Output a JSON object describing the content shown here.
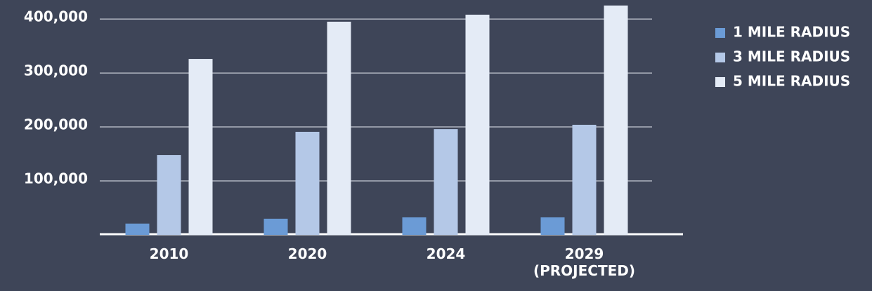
{
  "chart_data": {
    "type": "bar",
    "categories": [
      "2010",
      "2020",
      "2024",
      "2029\n(PROJECTED)"
    ],
    "series": [
      {
        "name": "1 MILE RADIUS",
        "color": "#6b9bd6",
        "values": [
          21000,
          30000,
          32500,
          32500
        ]
      },
      {
        "name": "3 MILE RADIUS",
        "color": "#b4c8e7",
        "values": [
          148000,
          191000,
          196000,
          204000
        ]
      },
      {
        "name": "5 MILE RADIUS",
        "color": "#e4ebf6",
        "values": [
          326000,
          395000,
          408000,
          425000
        ]
      }
    ],
    "ylim": [
      0,
      430000
    ],
    "yticks": [
      {
        "value": 100000,
        "label": "100,000"
      },
      {
        "value": 200000,
        "label": "200,000"
      },
      {
        "value": 300000,
        "label": "300,000"
      },
      {
        "value": 400000,
        "label": "400,000"
      }
    ],
    "grid": true,
    "legend": "right"
  }
}
